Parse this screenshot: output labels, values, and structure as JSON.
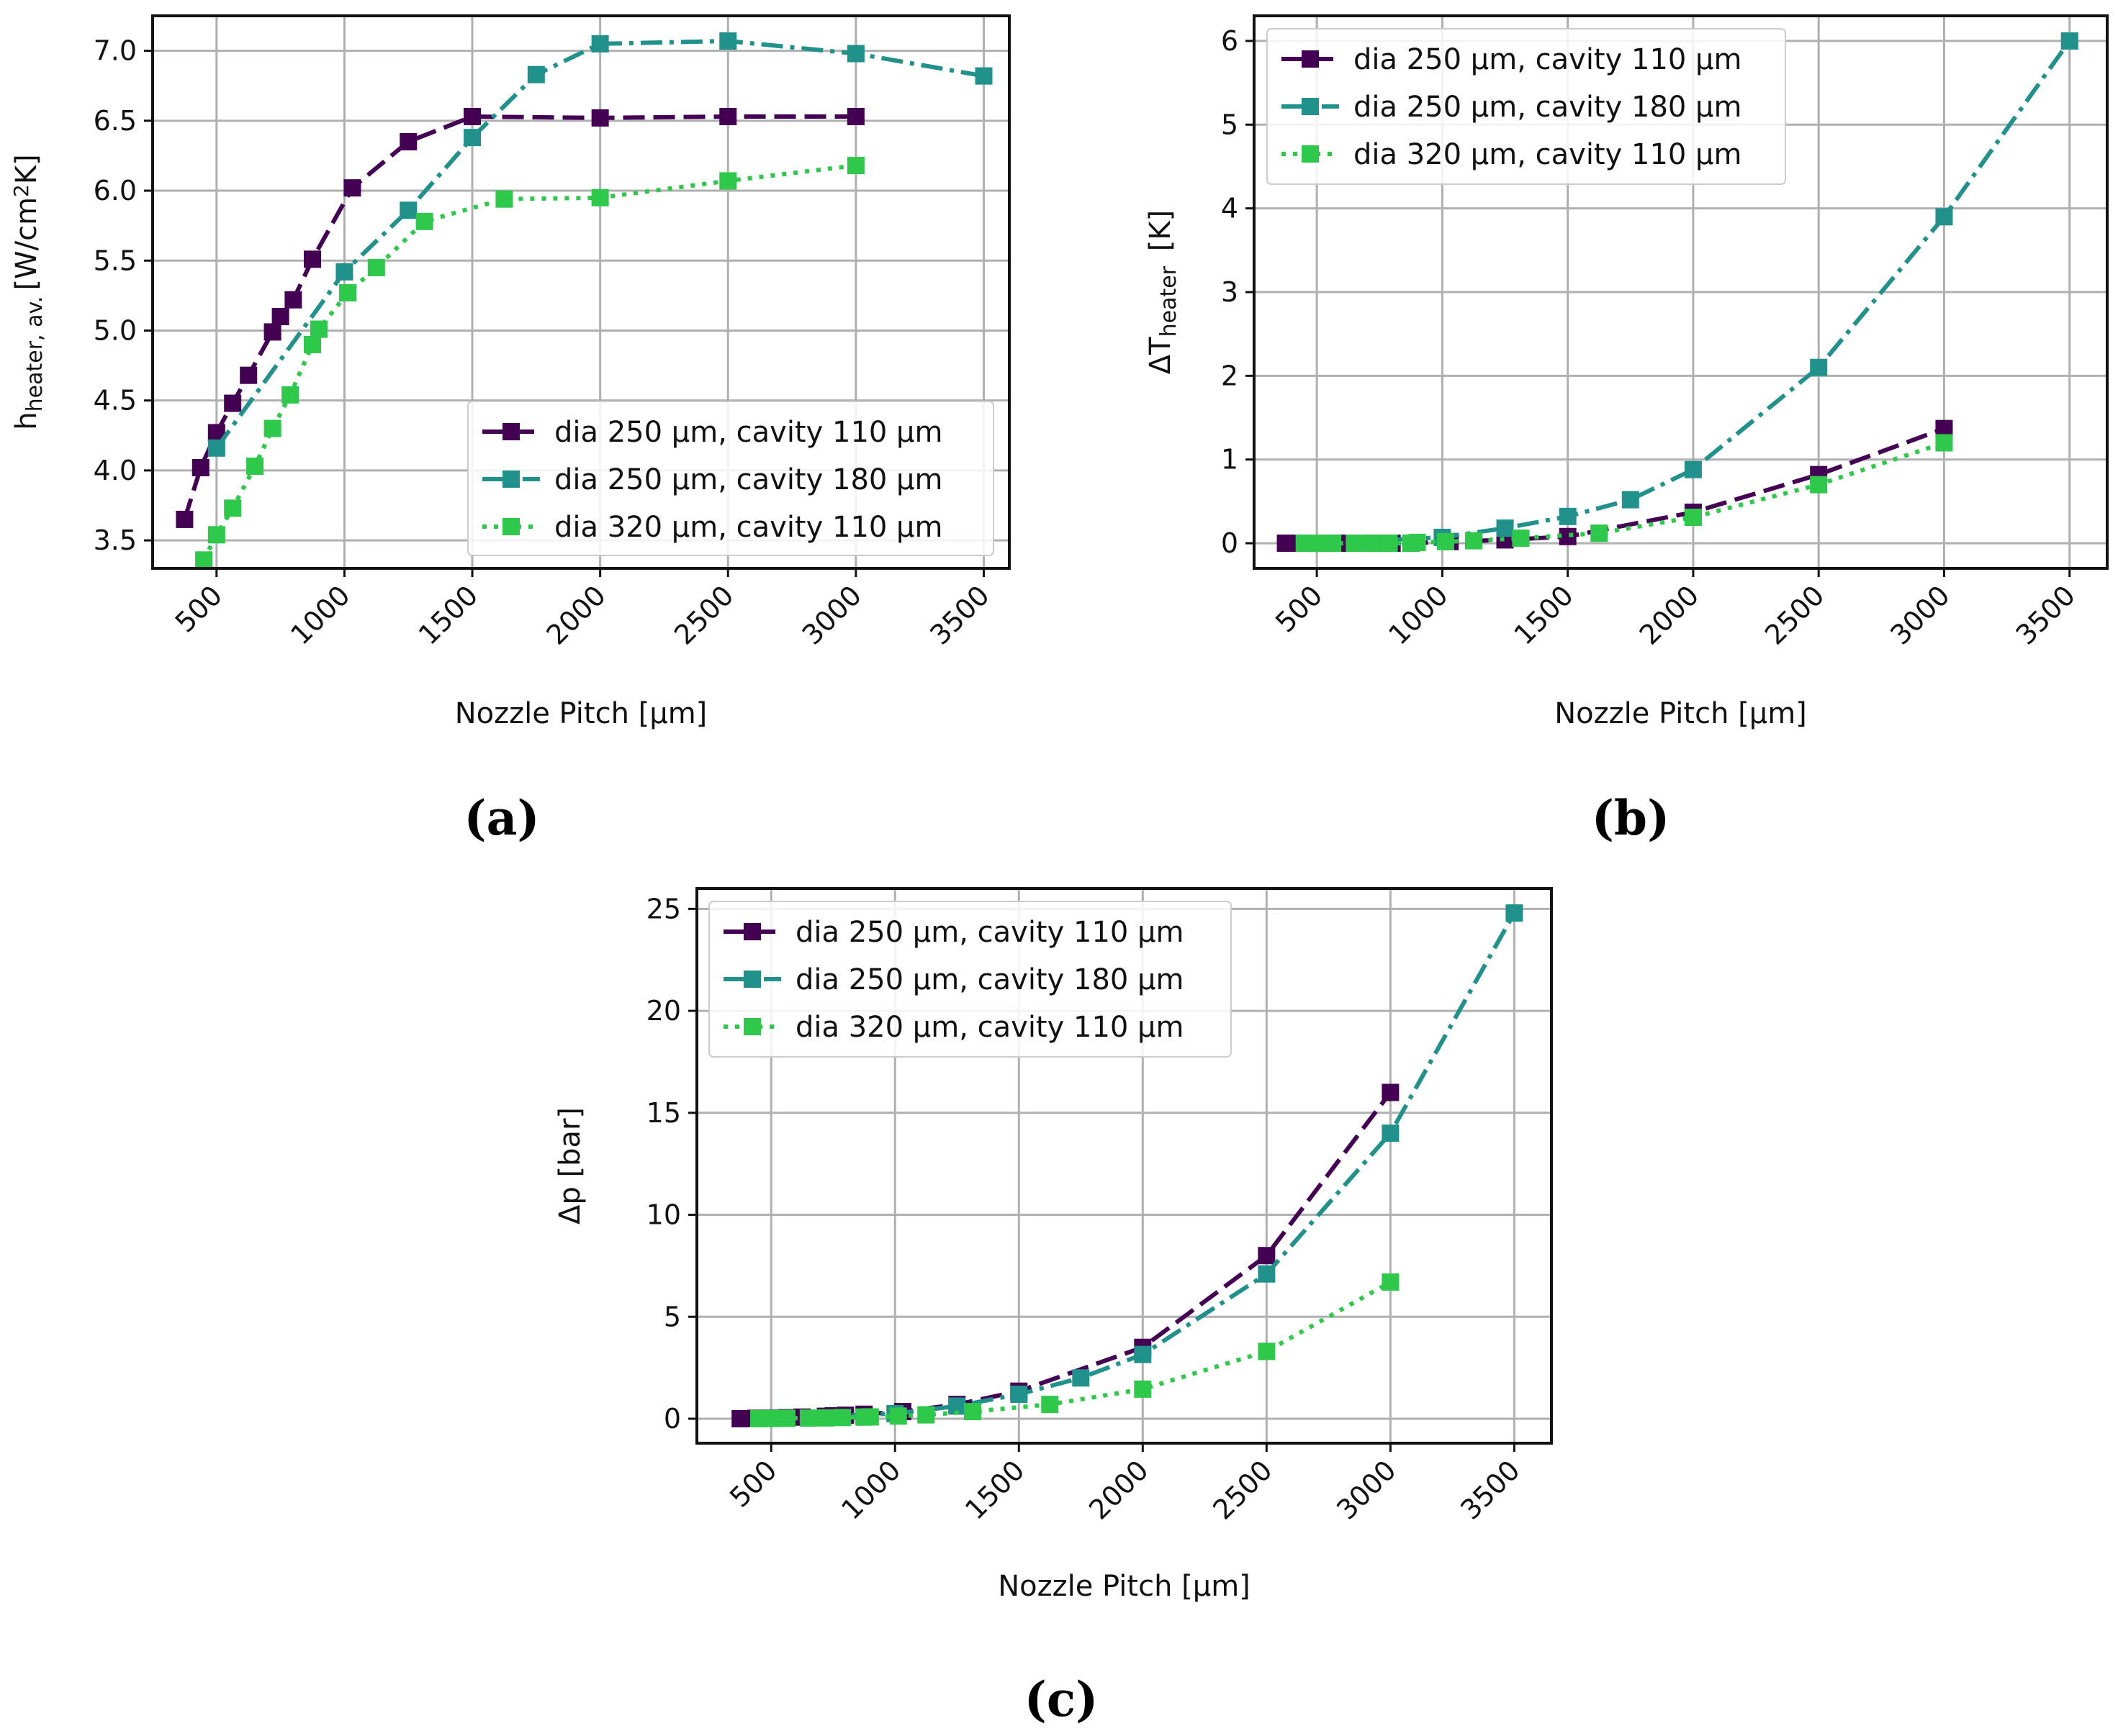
{
  "chart_data": [
    {
      "type": "line",
      "panel_label": "(a)",
      "xlabel": "Nozzle Pitch [µm]",
      "ylabel_main": "h",
      "ylabel_sub": "heater, av.",
      "ylabel_unit_pre": "[W/cm",
      "ylabel_unit_sup": "2",
      "ylabel_unit_post": "K]",
      "xlim": [
        250,
        3600
      ],
      "ylim": [
        3.3,
        7.25
      ],
      "xticks": [
        500,
        1000,
        1500,
        2000,
        2500,
        3000,
        3500
      ],
      "xtick_labels": [
        "500",
        "1000",
        "1500",
        "2000",
        "2500",
        "3000",
        "3500"
      ],
      "yticks": [
        3.5,
        4.0,
        4.5,
        5.0,
        5.5,
        6.0,
        6.5,
        7.0
      ],
      "ytick_labels": [
        "3.5",
        "4.0",
        "4.5",
        "5.0",
        "5.5",
        "6.0",
        "6.5",
        "7.0"
      ],
      "grid": true,
      "legend_position": "lower-right",
      "series": [
        {
          "name": "dia 250 µm, cavity 110 µm",
          "color": "#440154",
          "dash": "dashed",
          "x": [
            375,
            438,
            500,
            563,
            625,
            719,
            750,
            800,
            875,
            1031,
            1250,
            1500,
            2000,
            2500,
            3000
          ],
          "y": [
            3.65,
            4.02,
            4.27,
            4.48,
            4.68,
            4.99,
            5.1,
            5.22,
            5.51,
            6.02,
            6.35,
            6.53,
            6.52,
            6.53,
            6.53
          ]
        },
        {
          "name": "dia 250 µm, cavity 180 µm",
          "color": "#21918c",
          "dash": "dashdot",
          "x": [
            500,
            1000,
            1250,
            1500,
            1750,
            2000,
            2500,
            3000,
            3500
          ],
          "y": [
            4.16,
            5.42,
            5.86,
            6.38,
            6.83,
            7.05,
            7.07,
            6.98,
            6.82
          ]
        },
        {
          "name": "dia 320 µm, cavity 110 µm",
          "color": "#2ec84a",
          "dash": "dotted",
          "x": [
            450,
            500,
            563,
            650,
            719,
            788,
            875,
            900,
            1013,
            1125,
            1313,
            1625,
            2000,
            2500,
            3000
          ],
          "y": [
            3.36,
            3.54,
            3.73,
            4.03,
            4.3,
            4.54,
            4.9,
            5.01,
            5.27,
            5.45,
            5.78,
            5.94,
            5.95,
            6.07,
            6.18
          ]
        }
      ]
    },
    {
      "type": "line",
      "panel_label": "(b)",
      "xlabel": "Nozzle Pitch [µm]",
      "ylabel_main": "ΔT",
      "ylabel_sub": "heater",
      "ylabel_unit_pre": " [K]",
      "ylabel_unit_sup": "",
      "ylabel_unit_post": "",
      "xlim": [
        250,
        3650
      ],
      "ylim": [
        -0.3,
        6.3
      ],
      "xticks": [
        500,
        1000,
        1500,
        2000,
        2500,
        3000,
        3500
      ],
      "xtick_labels": [
        "500",
        "1000",
        "1500",
        "2000",
        "2500",
        "3000",
        "3500"
      ],
      "yticks": [
        0,
        1,
        2,
        3,
        4,
        5,
        6
      ],
      "ytick_labels": [
        "0",
        "1",
        "2",
        "3",
        "4",
        "5",
        "6"
      ],
      "grid": true,
      "legend_position": "upper-left",
      "series": [
        {
          "name": "dia 250 µm, cavity 110 µm",
          "color": "#440154",
          "dash": "dashed",
          "x": [
            375,
            438,
            500,
            563,
            625,
            719,
            750,
            800,
            875,
            1031,
            1250,
            1500,
            2000,
            2500,
            3000
          ],
          "y": [
            0,
            0,
            0,
            0,
            0,
            0,
            0,
            0,
            0,
            0.02,
            0.04,
            0.08,
            0.37,
            0.82,
            1.37
          ]
        },
        {
          "name": "dia 250 µm, cavity 180 µm",
          "color": "#21918c",
          "dash": "dashdot",
          "x": [
            500,
            1000,
            1250,
            1500,
            1750,
            2000,
            2500,
            3000,
            3500
          ],
          "y": [
            0,
            0.07,
            0.18,
            0.32,
            0.52,
            0.88,
            2.1,
            3.9,
            6.0
          ]
        },
        {
          "name": "dia 320 µm, cavity 110 µm",
          "color": "#2ec84a",
          "dash": "dotted",
          "x": [
            450,
            500,
            563,
            650,
            719,
            788,
            875,
            900,
            1013,
            1125,
            1313,
            1625,
            2000,
            2500,
            3000
          ],
          "y": [
            0,
            0,
            0,
            0,
            0,
            0,
            0,
            0.01,
            0.02,
            0.03,
            0.06,
            0.12,
            0.31,
            0.7,
            1.2
          ]
        }
      ]
    },
    {
      "type": "line",
      "panel_label": "(c)",
      "xlabel": "Nozzle Pitch [µm]",
      "ylabel_main": "Δp [bar]",
      "ylabel_sub": "",
      "ylabel_unit_pre": "",
      "ylabel_unit_sup": "",
      "ylabel_unit_post": "",
      "xlim": [
        200,
        3650
      ],
      "ylim": [
        -1.2,
        26.0
      ],
      "xticks": [
        500,
        1000,
        1500,
        2000,
        2500,
        3000,
        3500
      ],
      "xtick_labels": [
        "500",
        "1000",
        "1500",
        "2000",
        "2500",
        "3000",
        "3500"
      ],
      "yticks": [
        0,
        5,
        10,
        15,
        20,
        25
      ],
      "ytick_labels": [
        "0",
        "5",
        "10",
        "15",
        "20",
        "25"
      ],
      "grid": true,
      "legend_position": "upper-left",
      "series": [
        {
          "name": "dia 250 µm, cavity 110 µm",
          "color": "#440154",
          "dash": "dashed",
          "x": [
            375,
            438,
            500,
            563,
            625,
            719,
            750,
            800,
            875,
            1031,
            1250,
            1500,
            2000,
            2500,
            3000
          ],
          "y": [
            0,
            0.02,
            0.03,
            0.05,
            0.08,
            0.12,
            0.14,
            0.17,
            0.22,
            0.35,
            0.7,
            1.35,
            3.5,
            8.0,
            16.0
          ]
        },
        {
          "name": "dia 250 µm, cavity 180 µm",
          "color": "#21918c",
          "dash": "dashdot",
          "x": [
            500,
            1000,
            1250,
            1500,
            1750,
            2000,
            2500,
            3000,
            3500
          ],
          "y": [
            0.02,
            0.25,
            0.62,
            1.2,
            2.0,
            3.15,
            7.1,
            14.0,
            24.8
          ]
        },
        {
          "name": "dia 320 µm, cavity 110 µm",
          "color": "#2ec84a",
          "dash": "dotted",
          "x": [
            450,
            500,
            563,
            650,
            719,
            788,
            875,
            900,
            1013,
            1125,
            1313,
            1625,
            2000,
            2500,
            3000
          ],
          "y": [
            0,
            0.01,
            0.02,
            0.03,
            0.04,
            0.06,
            0.08,
            0.09,
            0.13,
            0.19,
            0.35,
            0.7,
            1.45,
            3.3,
            6.7
          ]
        }
      ]
    }
  ]
}
